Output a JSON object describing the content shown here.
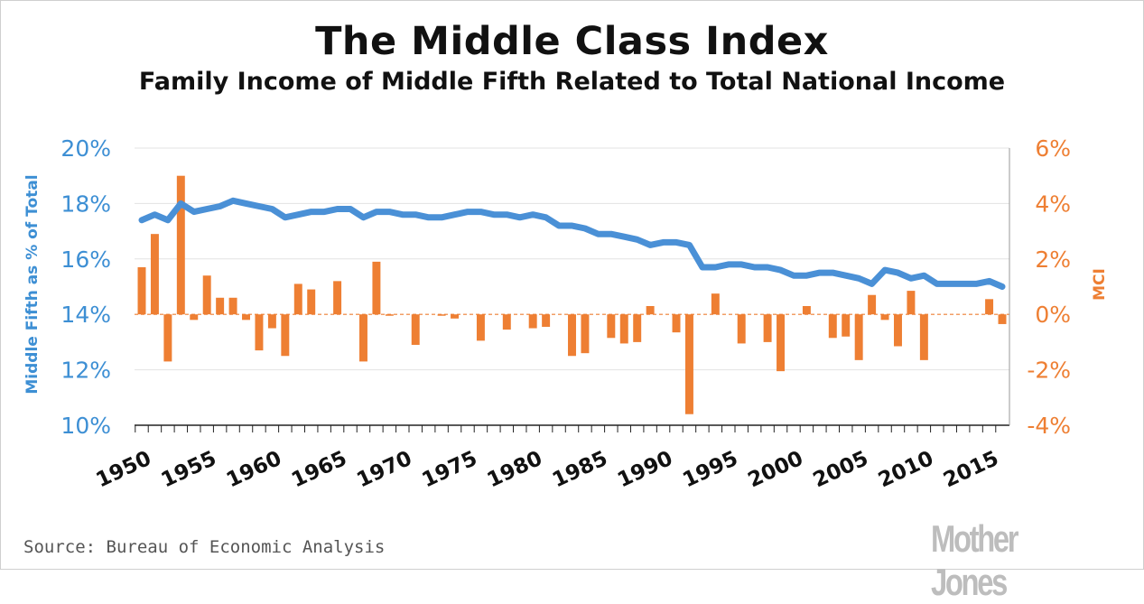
{
  "chart_data": {
    "type": "bar",
    "title": "The Middle Class Index",
    "subtitle": "Family Income of Middle Fifth Related to Total National Income",
    "source": "Source: Bureau of Economic Analysis",
    "logo": "Mother Jones",
    "ylabel_left": "Middle Fifth as % of Total",
    "ylabel_right": "MCI",
    "ylim_left": [
      10,
      20
    ],
    "ylim_right": [
      -4,
      6
    ],
    "yticks_left": [
      "10%",
      "12%",
      "14%",
      "16%",
      "18%",
      "20%"
    ],
    "yticks_right": [
      "-4%",
      "-2%",
      "0%",
      "2%",
      "4%",
      "6%"
    ],
    "xticks": [
      "1950",
      "1955",
      "1960",
      "1965",
      "1970",
      "1975",
      "1980",
      "1985",
      "1990",
      "1995",
      "2000",
      "2005",
      "2010",
      "2015"
    ],
    "grid": true,
    "colors": {
      "line": "#4a90d6",
      "bars": "#ee7f33"
    },
    "x": [
      1950,
      1951,
      1952,
      1953,
      1954,
      1955,
      1956,
      1957,
      1958,
      1959,
      1960,
      1961,
      1962,
      1963,
      1964,
      1965,
      1966,
      1967,
      1968,
      1969,
      1970,
      1971,
      1972,
      1973,
      1974,
      1975,
      1976,
      1977,
      1978,
      1979,
      1980,
      1981,
      1982,
      1983,
      1984,
      1985,
      1986,
      1987,
      1988,
      1989,
      1990,
      1991,
      1992,
      1993,
      1994,
      1995,
      1996,
      1997,
      1998,
      1999,
      2000,
      2001,
      2002,
      2003,
      2004,
      2005,
      2006,
      2007,
      2008,
      2009,
      2010,
      2011,
      2012,
      2013,
      2014,
      2015,
      2016
    ],
    "series": [
      {
        "axis": "left",
        "type": "line",
        "values": [
          17.4,
          17.6,
          17.4,
          18.0,
          17.7,
          17.8,
          17.9,
          18.1,
          18.0,
          17.9,
          17.8,
          17.5,
          17.6,
          17.7,
          17.7,
          17.8,
          17.8,
          17.5,
          17.7,
          17.7,
          17.6,
          17.6,
          17.5,
          17.5,
          17.6,
          17.7,
          17.7,
          17.6,
          17.6,
          17.5,
          17.6,
          17.5,
          17.2,
          17.2,
          17.1,
          16.9,
          16.9,
          16.8,
          16.7,
          16.5,
          16.6,
          16.6,
          16.5,
          15.7,
          15.7,
          15.8,
          15.8,
          15.7,
          15.7,
          15.6,
          15.4,
          15.4,
          15.5,
          15.5,
          15.4,
          15.3,
          15.1,
          15.6,
          15.5,
          15.3,
          15.4,
          15.1,
          15.1,
          15.1,
          15.1,
          15.2,
          15.0
        ]
      },
      {
        "axis": "right",
        "type": "bar",
        "values": [
          1.7,
          2.9,
          -1.7,
          5.0,
          -0.2,
          1.4,
          0.6,
          0.6,
          -0.2,
          -1.3,
          -0.5,
          -1.5,
          1.1,
          0.9,
          0.0,
          1.2,
          0.0,
          -1.7,
          1.9,
          -0.05,
          0.0,
          -1.1,
          0.0,
          -0.05,
          -0.15,
          0.0,
          -0.95,
          0.0,
          -0.55,
          0.0,
          -0.5,
          -0.45,
          0.0,
          -1.5,
          -1.4,
          0.0,
          -0.85,
          -1.05,
          -1.0,
          0.3,
          0.0,
          -0.65,
          -3.6,
          0.0,
          0.75,
          0.0,
          -1.05,
          0.0,
          -1.0,
          -2.05,
          0.0,
          0.3,
          0.0,
          -0.85,
          -0.8,
          -1.65,
          0.7,
          -0.2,
          -1.15,
          0.85,
          -1.65,
          0.0,
          0.0,
          0.0,
          0.0,
          0.55,
          -0.35
        ]
      }
    ]
  }
}
